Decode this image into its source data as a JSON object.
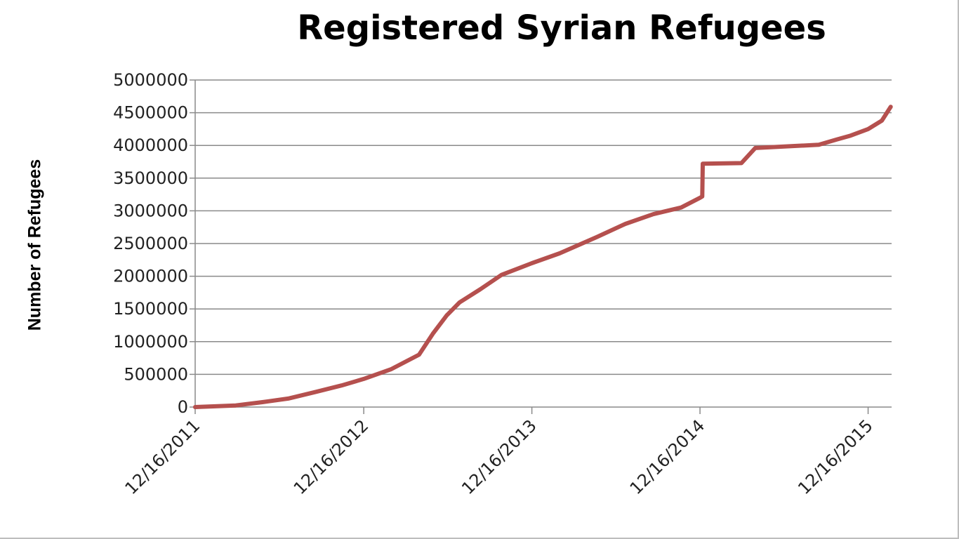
{
  "chart_data": {
    "type": "line",
    "title": "Registered Syrian Refugees",
    "xlabel": "",
    "ylabel": "Number of Refugees",
    "ylim": [
      0,
      5000000
    ],
    "y_ticks": [
      0,
      500000,
      1000000,
      1500000,
      2000000,
      2500000,
      3000000,
      3500000,
      4000000,
      4500000,
      5000000
    ],
    "y_tick_labels": [
      "0",
      "500000",
      "1000000",
      "1500000",
      "2000000",
      "2500000",
      "3000000",
      "3500000",
      "4000000",
      "4500000",
      "5000000"
    ],
    "x_tick_labels": [
      "12/16/2011",
      "12/16/2012",
      "12/16/2013",
      "12/16/2014",
      "12/16/2015"
    ],
    "xlim": [
      "2011-12-16",
      "2016-02-05"
    ],
    "grid": true,
    "line_color": "#B5504E",
    "series": [
      {
        "x": [
          "2011-12-16",
          "2012-03-13",
          "2012-05-10",
          "2012-07-05",
          "2012-09-02",
          "2012-10-29",
          "2012-12-16",
          "2013-02-14",
          "2013-04-15",
          "2013-05-15",
          "2013-06-14",
          "2013-07-12",
          "2013-08-26",
          "2013-10-11",
          "2013-12-16",
          "2014-02-14",
          "2014-05-06",
          "2014-07-07",
          "2014-09-06",
          "2014-11-05",
          "2014-12-16",
          "2014-12-21",
          "2014-12-22",
          "2015-03-16",
          "2015-04-15",
          "2015-08-31",
          "2015-10-09",
          "2015-11-08",
          "2015-12-16",
          "2016-01-15",
          "2016-02-03"
        ],
        "y": [
          0,
          25000,
          75000,
          130000,
          230000,
          330000,
          430000,
          580000,
          800000,
          1120000,
          1400000,
          1600000,
          1800000,
          2020000,
          2200000,
          2350000,
          2600000,
          2800000,
          2950000,
          3050000,
          3200000,
          3220000,
          3720000,
          3730000,
          3960000,
          4010000,
          4090000,
          4150000,
          4250000,
          4380000,
          4590000
        ]
      }
    ]
  }
}
